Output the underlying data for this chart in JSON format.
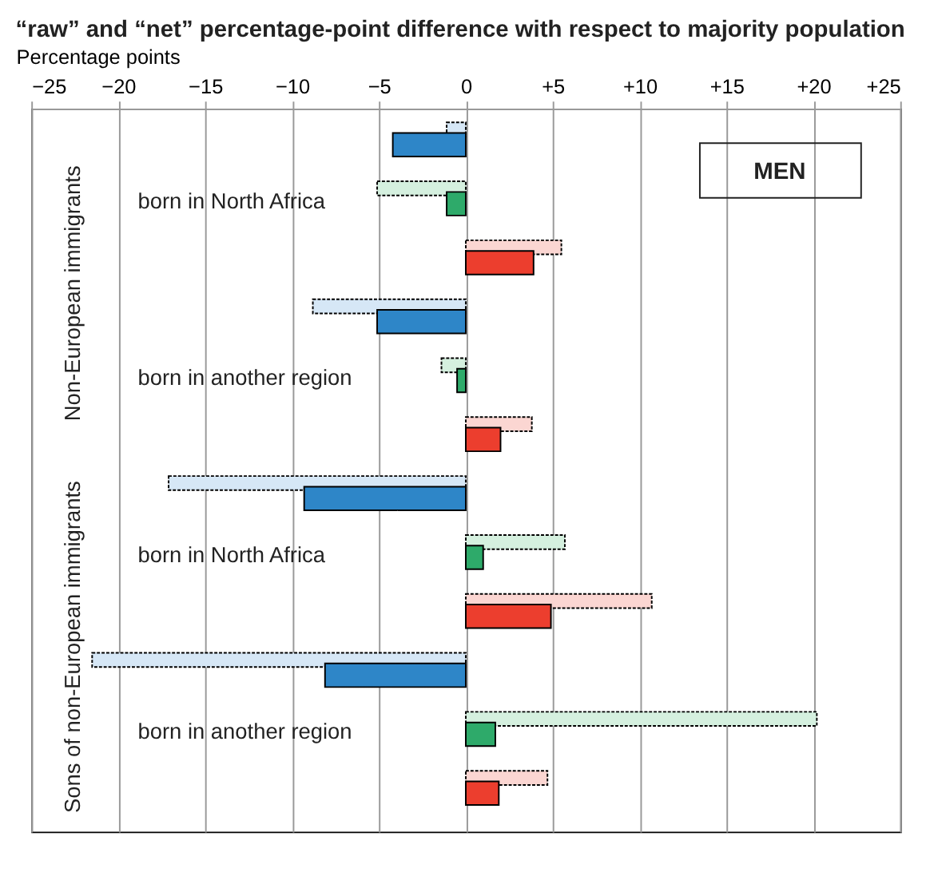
{
  "chart_data": {
    "type": "bar",
    "orientation": "horizontal",
    "title": "“raw” and “net” percentage-point difference with respect to majority population",
    "xlabel": "Percentage points",
    "categories": [
      "born in North Africa",
      "born in another region",
      "born in North Africa",
      "born in another region"
    ],
    "series": [
      {
        "color": "#d6e7f6",
        "values": [
          -1.1,
          -8.8,
          -17.1,
          -21.5
        ]
      },
      {
        "color": "#2e86c8",
        "values": [
          -4.2,
          -5.1,
          -9.3,
          -8.1
        ]
      },
      {
        "color": "#d5f0df",
        "values": [
          -5.1,
          -1.4,
          5.7,
          20.2
        ]
      },
      {
        "color": "#2eaa6a",
        "values": [
          -1.1,
          -0.5,
          1.0,
          1.7
        ]
      },
      {
        "color": "#fbd6d2",
        "values": [
          5.5,
          3.8,
          10.7,
          4.7
        ]
      },
      {
        "color": "#ec3e2e",
        "values": [
          3.9,
          2.0,
          4.9,
          1.9
        ]
      }
    ],
    "xlim": [
      -25,
      25
    ],
    "xticks": [
      -25,
      -20,
      -15,
      -10,
      -5,
      0,
      {
        "value": 5,
        "label": "+5"
      },
      {
        "value": 10,
        "label": "+10"
      },
      {
        "value": 15,
        "label": "+15"
      },
      {
        "value": 20,
        "label": "+20"
      },
      {
        "value": 25,
        "label": "+25"
      }
    ],
    "grid": "x",
    "annotations": [
      "Non-European immigrants",
      "Sons of non-European immigrants",
      "MEN"
    ]
  }
}
